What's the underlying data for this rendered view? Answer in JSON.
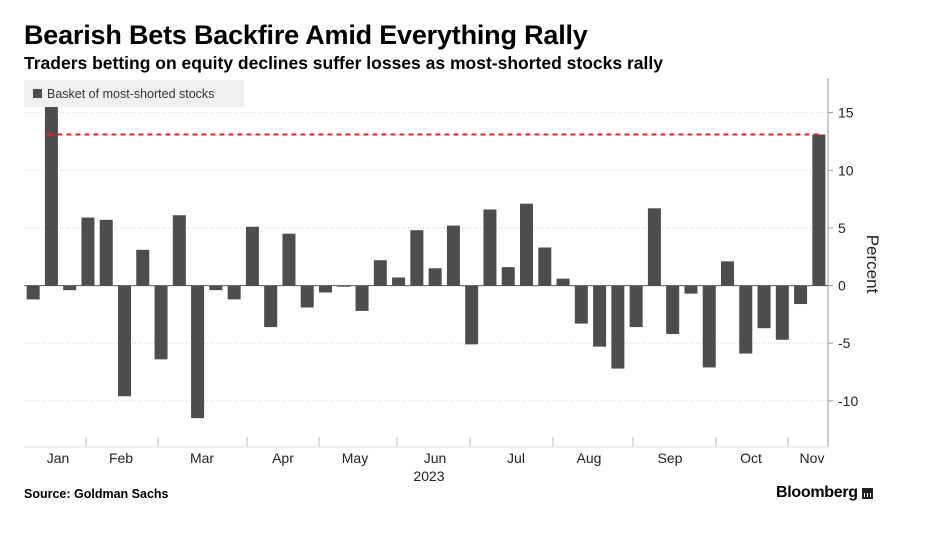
{
  "header": {
    "title": "Bearish Bets Backfire Amid Everything Rally",
    "subtitle": "Traders betting on equity declines suffer losses as most-shorted stocks rally"
  },
  "footer": {
    "source": "Source: Goldman Sachs",
    "brand": "Bloomberg"
  },
  "colors": {
    "bar": "#4d4d4d",
    "reference_line": "#e0242f",
    "grid": "#cccccc",
    "axis": "#999999",
    "legend_bg": "#f0f0f0"
  },
  "chart_data": {
    "type": "bar",
    "title": "Bearish Bets Backfire Amid Everything Rally",
    "ylabel": "Percent",
    "xlabel": "2023",
    "ylim": [
      -14,
      18
    ],
    "yticks": [
      15,
      10,
      5,
      0,
      -5,
      -10
    ],
    "y_axis_side": "right",
    "grid": true,
    "legend": {
      "label": "Basket of most-shorted stocks",
      "placement": "top-left"
    },
    "months": [
      "Jan",
      "Feb",
      "Mar",
      "Apr",
      "May",
      "Jun",
      "Jul",
      "Aug",
      "Sep",
      "Oct",
      "Nov"
    ],
    "year_label": "2023",
    "series": [
      {
        "name": "Basket of most-shorted stocks",
        "values": [
          -1.2,
          16.0,
          -0.4,
          5.9,
          5.7,
          -9.6,
          3.1,
          -6.4,
          6.1,
          -11.5,
          -0.4,
          -1.2,
          5.1,
          -3.6,
          4.5,
          -1.9,
          -0.6,
          -0.1,
          -2.2,
          2.2,
          0.7,
          4.8,
          1.5,
          5.2,
          -5.1,
          6.6,
          1.6,
          7.1,
          3.3,
          0.6,
          -3.3,
          -5.3,
          -7.2,
          -3.6,
          6.7,
          -4.2,
          -0.7,
          -7.1,
          2.1,
          -5.9,
          -3.7,
          -4.7,
          -1.6,
          13.1
        ]
      }
    ],
    "reference_line": {
      "value": 13.1,
      "from_index": 1,
      "to_index": 43,
      "style": "dashed"
    }
  }
}
